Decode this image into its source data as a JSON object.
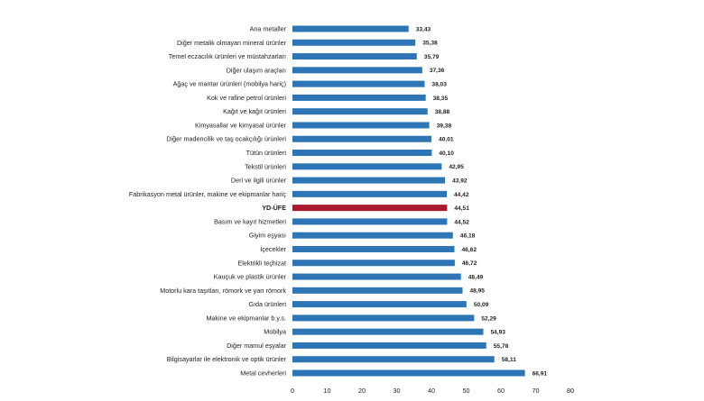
{
  "chart_data": {
    "type": "bar",
    "orientation": "horizontal",
    "title": "",
    "xlabel": "",
    "ylabel": "",
    "xlim": [
      0,
      80
    ],
    "xticks": [
      0,
      10,
      20,
      30,
      40,
      50,
      60,
      70,
      80
    ],
    "grid": false,
    "legend": "none",
    "colors": {
      "default": "#2e75b6",
      "highlight": "#a6192e"
    },
    "highlight_category": "YD-ÜFE",
    "categories": [
      "Ana metaller",
      "Diğer metalik olmayan mineral ürünler",
      "Temel eczacılık ürünleri ve müstahzarları",
      "Diğer ulaşım araçları",
      "Ağaç ve mantar ürünleri (mobilya hariç)",
      "Kok ve rafine petrol ürünleri",
      "Kağıt ve kağıt ürünleri",
      "Kimyasallar ve kimyasal ürünler",
      "Diğer madencilik ve taş ocakçılığı ürünleri",
      "Tütün ürünleri",
      "Tekstil ürünleri",
      "Deri ve ilgili ürünler",
      "Fabrikasyon metal ürünler, makine ve ekipmanlar hariç",
      "YD-ÜFE",
      "Basım ve kayıt hizmetleri",
      "Giyim eşyası",
      "İçecekler",
      "Elektrikli teçhizat",
      "Kauçuk ve plastik ürünler",
      "Motorlu kara taşıtları, römork ve yarı römork",
      "Gıda ürünleri",
      "Makine ve ekipmanlar b.y.s.",
      "Mobilya",
      "Diğer mamul eşyalar",
      "Bilgisayarlar ile elektronik ve optik ürünler",
      "Metal cevherleri"
    ],
    "values": [
      33.43,
      35.38,
      35.79,
      37.36,
      38.03,
      38.35,
      38.88,
      39.38,
      40.01,
      40.1,
      42.95,
      43.92,
      44.42,
      44.51,
      44.52,
      46.18,
      46.62,
      46.72,
      48.49,
      48.95,
      50.09,
      52.29,
      54.93,
      55.78,
      58.11,
      66.91
    ],
    "value_labels": [
      "33,43",
      "35,38",
      "35,79",
      "37,36",
      "38,03",
      "38,35",
      "38,88",
      "39,38",
      "40,01",
      "40,10",
      "42,95",
      "43,92",
      "44,42",
      "44,51",
      "44,52",
      "46,18",
      "46,62",
      "46,72",
      "48,49",
      "48,95",
      "50,09",
      "52,29",
      "54,93",
      "55,78",
      "58,11",
      "66,91"
    ]
  }
}
